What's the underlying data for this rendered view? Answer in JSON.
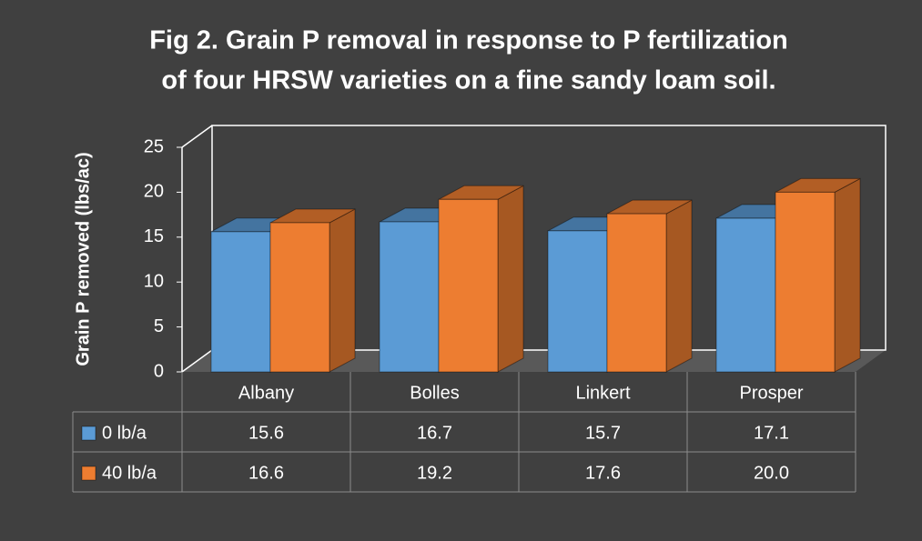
{
  "chart_data": {
    "type": "bar3d",
    "title": [
      "Fig 2. Grain P removal in response to P fertilization",
      "of four HRSW varieties on a fine sandy loam soil."
    ],
    "ylabel": "Grain P removed (lbs/ac)",
    "categories": [
      "Albany",
      "Bolles",
      "Linkert",
      "Prosper"
    ],
    "series": [
      {
        "name": "0 lb/a",
        "color": "#5b9bd5",
        "values": [
          15.6,
          16.7,
          15.7,
          17.1
        ]
      },
      {
        "name": "40 lb/a",
        "color": "#ed7d31",
        "values": [
          16.6,
          19.2,
          17.6,
          20.0
        ],
        "value_labels": [
          "16.6",
          "19.2",
          "17.6",
          "20.0"
        ]
      }
    ],
    "ylim": [
      0,
      25
    ],
    "yticks": [
      0,
      5,
      10,
      15,
      20,
      25
    ],
    "data_table": true
  }
}
